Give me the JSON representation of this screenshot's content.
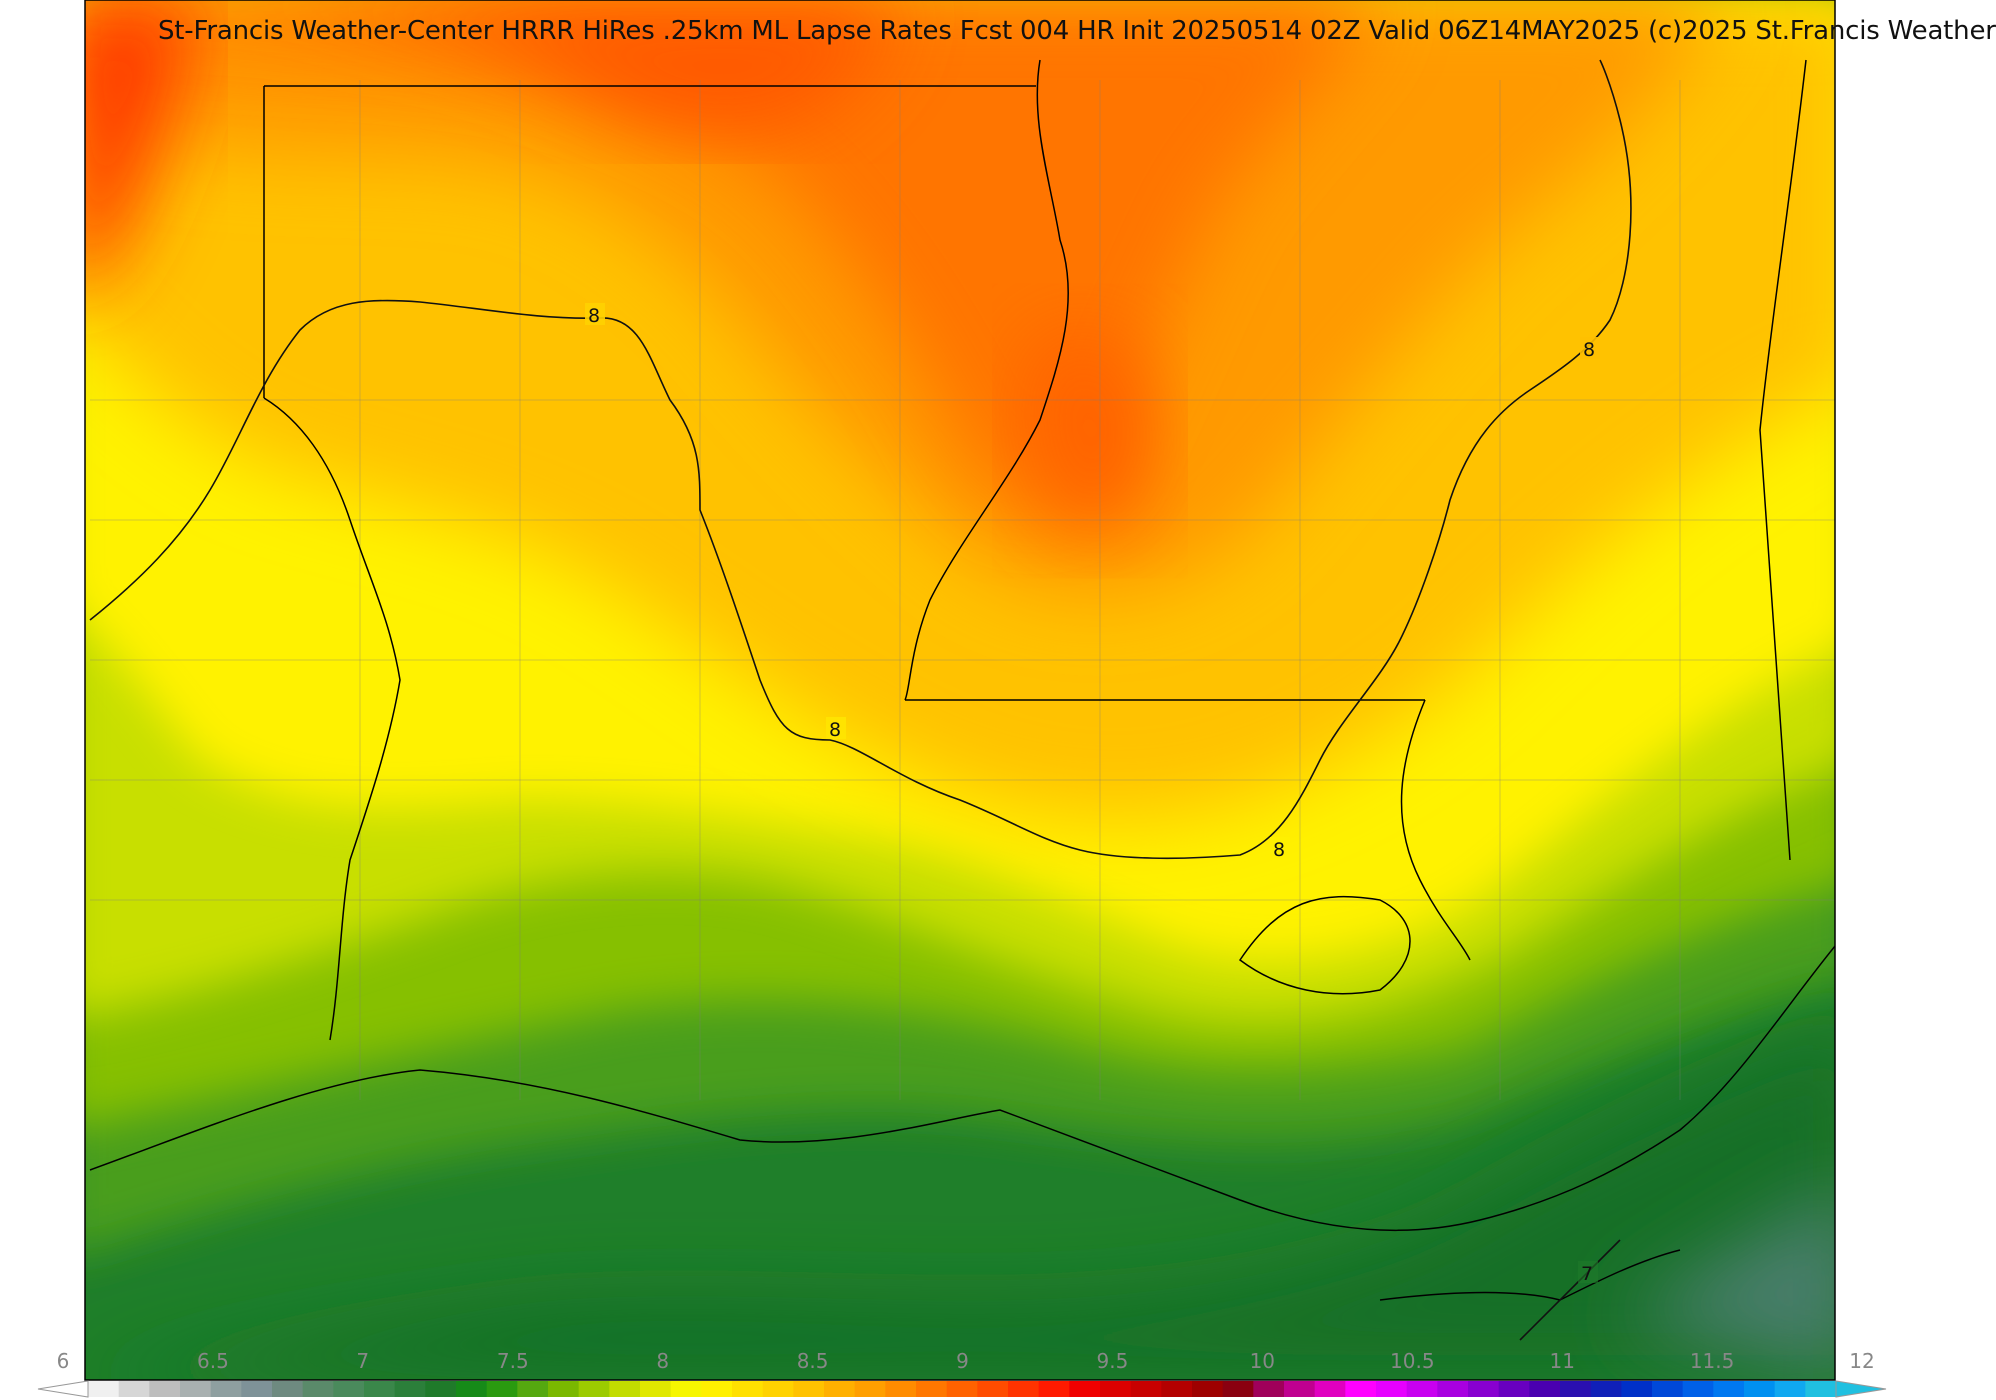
{
  "title": "St-Francis Weather-Center HRRR HiRes .25km ML Lapse Rates  Fcst 004 HR Init 20250514 02Z  Valid 06Z14MAY2025   (c)2025 St.Francis Weather",
  "colorbar": {
    "ticks": [
      "6",
      "6.5",
      "7",
      "7.5",
      "8",
      "8.5",
      "9",
      "9.5",
      "10",
      "10.5",
      "11",
      "11.5",
      "12"
    ],
    "colors": [
      "#f0f0f0",
      "#d6d6d6",
      "#bdbdbd",
      "#a8b0b0",
      "#8e9fa0",
      "#7e9298",
      "#6e8a80",
      "#5a8a6a",
      "#4a8a5c",
      "#3a874a",
      "#2b7f3a",
      "#1f7a2a",
      "#168a18",
      "#2a9a10",
      "#55a810",
      "#7ab800",
      "#9ccb00",
      "#c2dc00",
      "#e0e800",
      "#f6f600",
      "#fff000",
      "#ffe000",
      "#ffd200",
      "#ffc200",
      "#ffb000",
      "#ff9f00",
      "#ff8c00",
      "#ff7700",
      "#ff6200",
      "#ff4c00",
      "#ff3300",
      "#ff1a00",
      "#f00000",
      "#dc0000",
      "#c80000",
      "#b40000",
      "#9e0000",
      "#8a0010",
      "#a0005a",
      "#c00090",
      "#e000c0",
      "#ff00ff",
      "#e600ff",
      "#c800f0",
      "#a800e0",
      "#8800d0",
      "#6800c0",
      "#4a00b0",
      "#2a10b0",
      "#1020b8",
      "#0030c8",
      "#0048d8",
      "#0060e8",
      "#0078f0",
      "#0090f0",
      "#10a8f0",
      "#20c0e0"
    ],
    "under_color": "#ffffff",
    "over_color": "#20c0e0"
  },
  "contour_labels": [
    "8",
    "8",
    "8",
    "8",
    "7"
  ],
  "colors": {
    "background": "#ffffff",
    "border": "#000000"
  }
}
